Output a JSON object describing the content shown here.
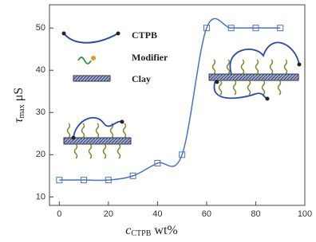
{
  "chart_data": {
    "type": "line",
    "x_label": {
      "main": "c",
      "sub": "CTPB",
      "unit": "wt%"
    },
    "y_label": {
      "main": "τ",
      "sub": "max",
      "unit": "μS"
    },
    "annotations": [
      "CTPB",
      "Modifier",
      "Clay"
    ],
    "x": [
      0,
      10,
      20,
      30,
      40,
      50,
      60,
      70,
      80,
      90
    ],
    "series": [
      {
        "color": "#4a72c4",
        "values": [
          14,
          14,
          14,
          15,
          18,
          20,
          50,
          50,
          50,
          50
        ]
      }
    ],
    "xlim": [
      -4,
      100
    ],
    "ylim": [
      8,
      55.5
    ],
    "xticks": [
      0,
      20,
      40,
      60,
      80,
      100
    ],
    "yticks": [
      10,
      20,
      30,
      40,
      50
    ]
  }
}
